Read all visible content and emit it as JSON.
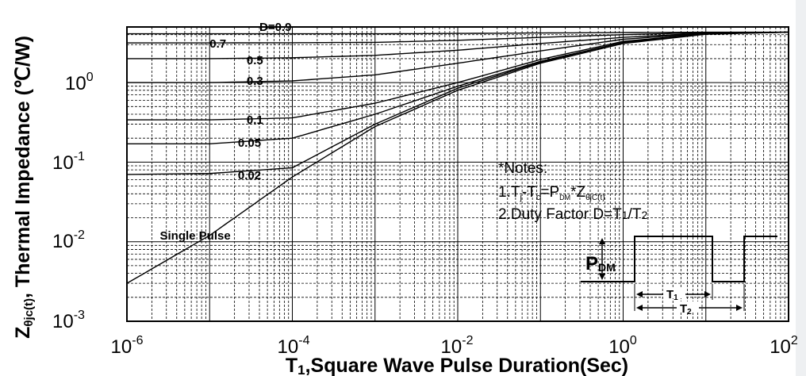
{
  "chart_data": {
    "type": "line",
    "x_scale": "log",
    "y_scale": "log",
    "xlim": [
      1e-06,
      100
    ],
    "ylim": [
      0.001,
      5
    ],
    "grid": true,
    "xlabel": {
      "main": "T",
      "sub": "1",
      "rest": ",Square Wave Pulse Duration(Sec)"
    },
    "ylabel": {
      "main": "Z",
      "sub": "θjc(t)",
      "rest": ", Thermal  Impedance (℃/W)"
    },
    "x_ticks": [
      {
        "value": 1e-06,
        "base": "10",
        "exp": "-6"
      },
      {
        "value": 0.0001,
        "base": "10",
        "exp": "-4"
      },
      {
        "value": 0.01,
        "base": "10",
        "exp": "-2"
      },
      {
        "value": 1,
        "base": "10",
        "exp": "0"
      },
      {
        "value": 100,
        "base": "10",
        "exp": "2"
      }
    ],
    "y_ticks": [
      {
        "value": 0.001,
        "base": "10",
        "exp": "-3"
      },
      {
        "value": 0.01,
        "base": "10",
        "exp": "-2"
      },
      {
        "value": 0.1,
        "base": "10",
        "exp": "-1"
      },
      {
        "value": 1,
        "base": "10",
        "exp": "0"
      }
    ],
    "series": [
      {
        "name": "D=0.9",
        "x": [
          1e-06,
          1e-05,
          0.0001,
          0.001,
          0.01,
          0.1,
          1,
          10,
          100
        ],
        "y": [
          4.1,
          4.1,
          4.1,
          4.1,
          4.15,
          4.2,
          4.25,
          4.3,
          4.3
        ]
      },
      {
        "name": "0.7",
        "x": [
          1e-06,
          1e-05,
          0.0001,
          0.001,
          0.01,
          0.1,
          1,
          10,
          100
        ],
        "y": [
          3.15,
          3.15,
          3.17,
          3.2,
          3.4,
          3.7,
          4.0,
          4.25,
          4.3
        ]
      },
      {
        "name": "0.5",
        "x": [
          1e-06,
          1e-05,
          0.0001,
          0.001,
          0.01,
          0.1,
          1,
          10,
          100
        ],
        "y": [
          2.0,
          2.0,
          2.05,
          2.2,
          2.55,
          3.1,
          3.7,
          4.2,
          4.3
        ]
      },
      {
        "name": "0.3",
        "x": [
          1e-06,
          1e-05,
          0.0001,
          0.001,
          0.01,
          0.1,
          1,
          10,
          100
        ],
        "y": [
          1.0,
          1.0,
          1.05,
          1.25,
          1.75,
          2.5,
          3.5,
          4.15,
          4.3
        ]
      },
      {
        "name": "0.1",
        "x": [
          1e-06,
          1e-05,
          0.0001,
          0.001,
          0.01,
          0.1,
          1,
          10,
          100
        ],
        "y": [
          0.34,
          0.34,
          0.36,
          0.55,
          1.0,
          1.95,
          3.3,
          4.1,
          4.3
        ]
      },
      {
        "name": "0.05",
        "x": [
          1e-06,
          1e-05,
          0.0001,
          0.001,
          0.01,
          0.1,
          1,
          10,
          100
        ],
        "y": [
          0.17,
          0.17,
          0.2,
          0.4,
          0.9,
          1.85,
          3.2,
          4.1,
          4.3
        ]
      },
      {
        "name": "0.02",
        "x": [
          1e-06,
          1e-05,
          0.0001,
          0.001,
          0.01,
          0.1,
          1,
          10,
          100
        ],
        "y": [
          0.07,
          0.072,
          0.085,
          0.3,
          0.85,
          1.8,
          3.2,
          4.1,
          4.3
        ]
      },
      {
        "name": "Single Pulse",
        "x": [
          1e-06,
          1e-05,
          0.0001,
          0.001,
          0.01,
          0.1,
          1,
          10,
          100
        ],
        "y": [
          0.003,
          0.012,
          0.065,
          0.28,
          0.8,
          1.75,
          3.1,
          4.05,
          4.3
        ]
      }
    ],
    "curve_labels": [
      {
        "text": "D=0.9",
        "x": 4e-05,
        "y": 5.0
      },
      {
        "text": "0.7",
        "x": 1e-05,
        "y": 3.1
      },
      {
        "text": "0.5",
        "x": 2.8e-05,
        "y": 1.9
      },
      {
        "text": "0.3",
        "x": 2.8e-05,
        "y": 1.05
      },
      {
        "text": "0.1",
        "x": 2.8e-05,
        "y": 0.34
      },
      {
        "text": "0.05",
        "x": 2.2e-05,
        "y": 0.175
      },
      {
        "text": "0.02",
        "x": 2.2e-05,
        "y": 0.068
      },
      {
        "text": "Single Pulse",
        "x": 2.5e-06,
        "y": 0.012
      }
    ],
    "notes": {
      "title": "*Notes:",
      "line1": {
        "a": "1.T",
        "j": "j",
        "b": "-T",
        "c": "c",
        "d": "=P",
        "dm": "DM",
        "e": "*Z",
        "z": "θjC(t)"
      },
      "line2": {
        "a": "2.Duty Factor D=T",
        "s1": "1",
        "b": "/T",
        "s2": "2"
      }
    },
    "pulse_diagram": {
      "pdm_label": "P",
      "pdm_sub": "DM",
      "t1_label": "T",
      "t1_sub": "1",
      "t2_label": "T",
      "t2_sub": "2"
    }
  }
}
